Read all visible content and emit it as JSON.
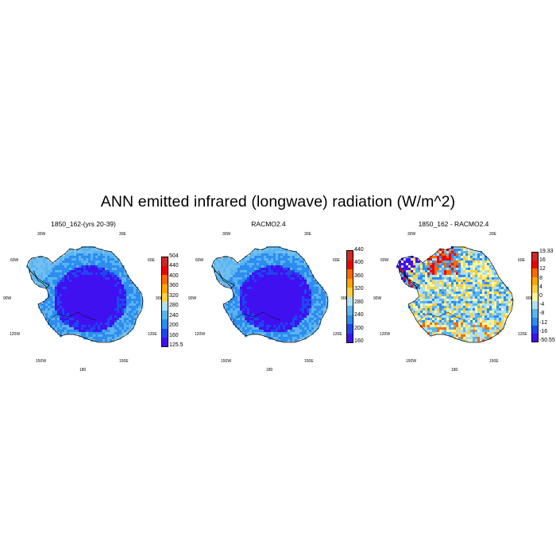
{
  "title": "ANN emitted infrared (longwave) radiation (W/m^2)",
  "chart_data": [
    {
      "type": "heatmap",
      "title": "1850_162-(yrs 20-39)",
      "lon_labels": [
        "30W",
        "30E",
        "60W",
        "60E",
        "90W",
        "90E",
        "120W",
        "120E",
        "150W",
        "150E",
        "180"
      ],
      "colorbar": {
        "ticks": [
          "504",
          "440",
          "400",
          "360",
          "320",
          "280",
          "240",
          "200",
          "160",
          "125.5"
        ],
        "colors": [
          "#d02828",
          "#f00000",
          "#ff6a00",
          "#ffa500",
          "#ffd040",
          "#b0e0f0",
          "#5ab4f0",
          "#2d8cf0",
          "#1e46f0",
          "#4010f0"
        ]
      }
    },
    {
      "type": "heatmap",
      "title": "RACMO2.4",
      "lon_labels": [
        "30W",
        "30E",
        "60W",
        "60E",
        "90W",
        "90E",
        "120W",
        "120E",
        "150W",
        "150E",
        "180"
      ],
      "colorbar": {
        "ticks": [
          "440",
          "400",
          "360",
          "320",
          "280",
          "240",
          "200",
          "160"
        ],
        "colors": [
          "#d02828",
          "#f00000",
          "#ff6a00",
          "#ffa500",
          "#ffd040",
          "#b0e0f0",
          "#5ab4f0",
          "#2d8cf0",
          "#1e46f0",
          "#4010f0"
        ]
      }
    },
    {
      "type": "heatmap",
      "title": "1850_162 - RACMO2.4",
      "lon_labels": [
        "30W",
        "30E",
        "60W",
        "60E",
        "90W",
        "90E",
        "120W",
        "120E",
        "150W",
        "150E",
        "180"
      ],
      "colorbar": {
        "ticks": [
          "19.33",
          "16",
          "12",
          "8",
          "4",
          "0",
          "-4",
          "-8",
          "-12",
          "-16",
          "-50.55"
        ],
        "colors": [
          "#d02828",
          "#f00000",
          "#ff6a00",
          "#ffa500",
          "#ffd040",
          "#fff8a0",
          "#b0e0f0",
          "#5ab4f0",
          "#2d8cf0",
          "#1e46f0",
          "#4010f0"
        ]
      }
    }
  ]
}
